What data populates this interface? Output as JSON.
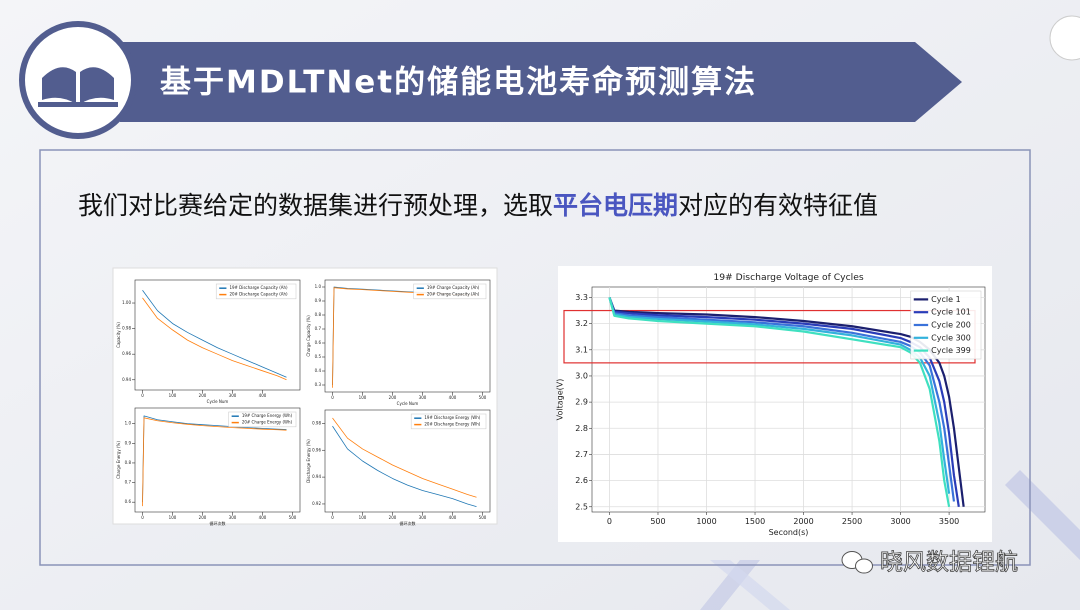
{
  "header": {
    "title": "基于MDLTNet的储能电池寿命预测算法"
  },
  "subtitle": {
    "parts": [
      "我们对比赛给定的数据集进行预处理，选取",
      "平台电压期",
      "对应的有效特征值"
    ]
  },
  "watermark": "晓风数据锂航",
  "chart_data": [
    {
      "type": "line",
      "x": [
        0,
        50,
        100,
        150,
        200,
        250,
        300,
        350,
        400,
        450,
        480
      ],
      "xlabel": "Cycle Num",
      "ylabel": "Capacity (%)",
      "xlim": [
        -25,
        525
      ],
      "xticks": [
        0,
        100,
        200,
        300,
        400
      ],
      "ylim": [
        0.932,
        1.018
      ],
      "yticks": [
        {
          "value": 0.94,
          "label": "0.94"
        },
        {
          "value": 0.96,
          "label": "0.96"
        },
        {
          "value": 0.98,
          "label": "0.98"
        },
        {
          "value": 1.0,
          "label": "1.00"
        }
      ],
      "legend": "upper right",
      "series": [
        {
          "name": "19# Discharge Capacity (Ah)",
          "color": "#1f77b4",
          "values": [
            1.01,
            0.994,
            0.984,
            0.977,
            0.971,
            0.965,
            0.96,
            0.955,
            0.95,
            0.945,
            0.942
          ]
        },
        {
          "name": "20# Discharge Capacity (Ah)",
          "color": "#ff7f0e",
          "values": [
            1.004,
            0.988,
            0.979,
            0.971,
            0.965,
            0.96,
            0.955,
            0.951,
            0.947,
            0.943,
            0.94
          ]
        }
      ]
    },
    {
      "type": "line",
      "x": [
        0,
        5,
        50,
        100,
        150,
        200,
        250,
        300,
        350,
        400,
        450,
        480
      ],
      "xlabel": "Cycle Num",
      "ylabel": "Charge Capacity (%)",
      "xlim": [
        -25,
        525
      ],
      "xticks": [
        0,
        100,
        200,
        300,
        400,
        500
      ],
      "ylim": [
        0.25,
        1.05
      ],
      "yticks": [
        0.3,
        0.4,
        0.5,
        0.6,
        0.7,
        0.8,
        0.9,
        {
          "value": 1.0,
          "label": "1.0"
        }
      ],
      "legend": "upper right",
      "series": [
        {
          "name": "19# Charge Capacity (Ah)",
          "color": "#1f77b4",
          "values": [
            0.3,
            1.0,
            0.99,
            0.985,
            0.978,
            0.972,
            0.966,
            0.961,
            0.956,
            0.951,
            0.946,
            0.943
          ]
        },
        {
          "name": "20# Charge Capacity (Ah)",
          "color": "#ff7f0e",
          "values": [
            0.28,
            0.995,
            0.986,
            0.981,
            0.975,
            0.969,
            0.963,
            0.958,
            0.953,
            0.948,
            0.944,
            0.941
          ]
        }
      ]
    },
    {
      "type": "line",
      "x": [
        0,
        5,
        50,
        100,
        150,
        200,
        250,
        300,
        350,
        400,
        450,
        480
      ],
      "xlabel": "循环次数",
      "ylabel": "Charge Energy (%)",
      "xlim": [
        -25,
        525
      ],
      "xticks": [
        0,
        100,
        200,
        300,
        400,
        500
      ],
      "ylim": [
        0.55,
        1.08
      ],
      "yticks": [
        0.6,
        0.7,
        0.8,
        0.9,
        {
          "value": 1.0,
          "label": "1.0"
        }
      ],
      "legend": "upper right",
      "series": [
        {
          "name": "19# Charge Energy (Wh)",
          "color": "#1f77b4",
          "values": [
            0.6,
            1.04,
            1.02,
            1.01,
            1.0,
            0.995,
            0.99,
            0.985,
            0.98,
            0.976,
            0.972,
            0.97
          ]
        },
        {
          "name": "20# Charge Energy (Wh)",
          "color": "#ff7f0e",
          "values": [
            0.58,
            1.03,
            1.015,
            1.005,
            0.997,
            0.99,
            0.985,
            0.98,
            0.976,
            0.972,
            0.969,
            0.967
          ]
        }
      ]
    },
    {
      "type": "line",
      "x": [
        0,
        50,
        100,
        150,
        200,
        250,
        300,
        350,
        400,
        450,
        480
      ],
      "xlabel": "循环次数",
      "ylabel": "Discharge Energy (%)",
      "xlim": [
        -25,
        525
      ],
      "xticks": [
        0,
        100,
        200,
        300,
        400,
        500
      ],
      "ylim": [
        0.914,
        0.99
      ],
      "yticks": [
        0.92,
        0.94,
        0.96,
        0.98
      ],
      "legend": "upper right",
      "series": [
        {
          "name": "19# Discharge Energy (Wh)",
          "color": "#1f77b4",
          "values": [
            0.978,
            0.961,
            0.952,
            0.945,
            0.939,
            0.934,
            0.93,
            0.927,
            0.924,
            0.92,
            0.918
          ]
        },
        {
          "name": "20# Discharge Energy (Wh)",
          "color": "#ff7f0e",
          "values": [
            0.984,
            0.969,
            0.961,
            0.955,
            0.949,
            0.944,
            0.939,
            0.935,
            0.931,
            0.927,
            0.925
          ]
        }
      ]
    },
    {
      "type": "line",
      "title": "19# Discharge Voltage of Cycles",
      "xlabel": "Second(s)",
      "ylabel": "Voltage(V)",
      "x": [
        0,
        50,
        200,
        500,
        1000,
        1500,
        2000,
        2500,
        3000,
        3100,
        3200,
        3300,
        3400,
        3450,
        3500,
        3550,
        3600,
        3650
      ],
      "xlim": [
        -180,
        3870
      ],
      "xticks": [
        0,
        500,
        1000,
        1500,
        2000,
        2500,
        3000,
        3500
      ],
      "ylim": [
        2.48,
        3.34
      ],
      "yticks": [
        2.5,
        2.6,
        2.7,
        2.8,
        2.9,
        {
          "value": 3.0,
          "label": "3.0"
        },
        3.1,
        3.2,
        3.3
      ],
      "grid": true,
      "legend": "upper right",
      "highlight_band": [
        3.05,
        3.25
      ],
      "highlight_color": "#e03030",
      "series": [
        {
          "name": "Cycle 1",
          "color": "#1b1f6e",
          "values": [
            3.3,
            3.25,
            3.245,
            3.24,
            3.235,
            3.225,
            3.21,
            3.19,
            3.16,
            3.15,
            3.13,
            3.1,
            3.05,
            3.0,
            2.92,
            2.8,
            2.65,
            2.5
          ]
        },
        {
          "name": "Cycle 101",
          "color": "#2a3cb8",
          "values": [
            3.3,
            3.245,
            3.24,
            3.232,
            3.225,
            3.215,
            3.2,
            3.18,
            3.145,
            3.13,
            3.11,
            3.07,
            2.98,
            2.9,
            2.78,
            2.62,
            2.5,
            null
          ]
        },
        {
          "name": "Cycle 200",
          "color": "#3a72da",
          "values": [
            3.3,
            3.24,
            3.232,
            3.225,
            3.215,
            3.205,
            3.19,
            3.165,
            3.13,
            3.115,
            3.09,
            3.04,
            2.9,
            2.8,
            2.66,
            2.52,
            null,
            null
          ]
        },
        {
          "name": "Cycle 300",
          "color": "#33b2dc",
          "values": [
            3.3,
            3.235,
            3.226,
            3.218,
            3.208,
            3.197,
            3.18,
            3.155,
            3.12,
            3.1,
            3.07,
            3.0,
            2.82,
            2.68,
            2.55,
            null,
            null,
            null
          ]
        },
        {
          "name": "Cycle 399",
          "color": "#3fe0c0",
          "values": [
            3.3,
            3.23,
            3.22,
            3.21,
            3.2,
            3.19,
            3.17,
            3.14,
            3.11,
            3.09,
            3.05,
            2.95,
            2.75,
            2.6,
            2.5,
            null,
            null,
            null
          ]
        }
      ]
    }
  ]
}
